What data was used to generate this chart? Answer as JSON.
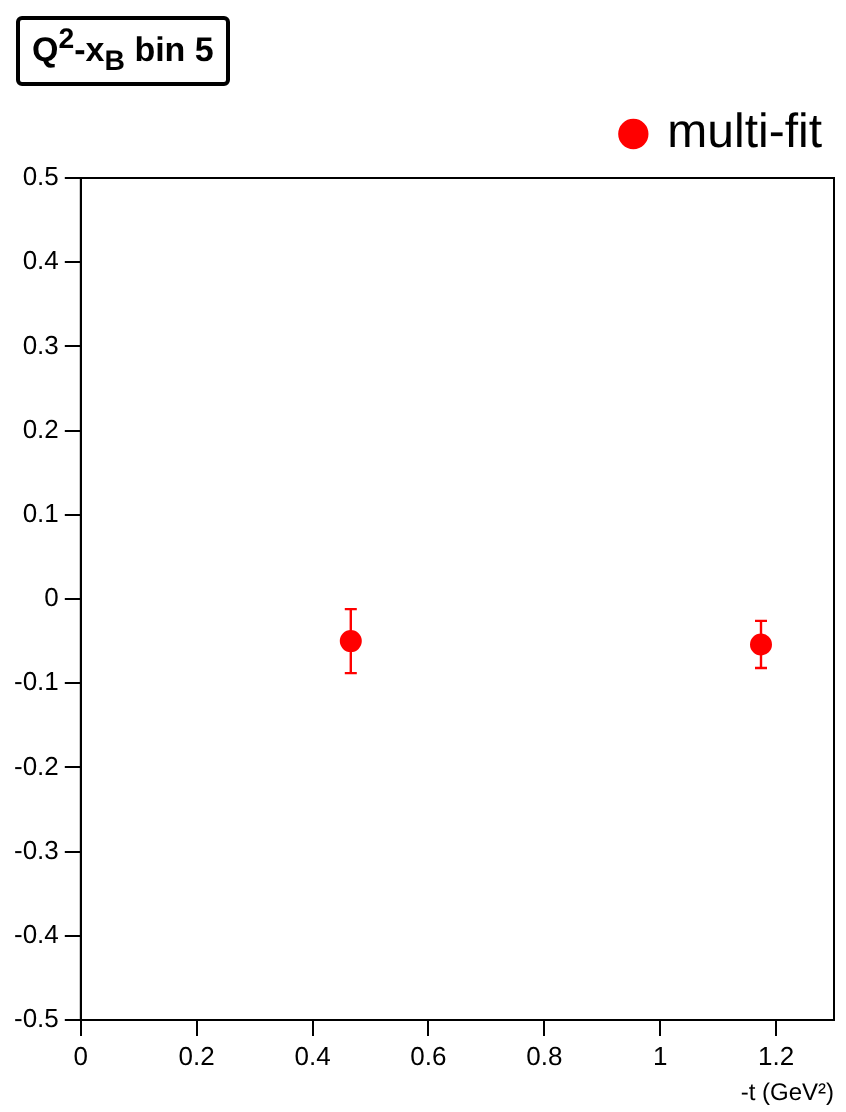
{
  "chart_data": {
    "type": "scatter",
    "title": "Q$^{2}$-x$_{B}$ bin 5",
    "xlabel": "-t (GeV²)",
    "x": [
      0.466,
      1.174
    ],
    "series": [
      {
        "name": "multi-fit",
        "color": "#ff0000",
        "values": [
          -0.05,
          -0.054
        ],
        "errors": [
          0.038,
          0.028
        ]
      }
    ],
    "xlim": [
      0,
      1.3
    ],
    "xticks": [
      0,
      0.2,
      0.4,
      0.6,
      0.8,
      1,
      1.2
    ],
    "ylim": [
      -0.5,
      0.5
    ],
    "yticks": [
      -0.5,
      -0.4,
      -0.3,
      -0.2,
      -0.1,
      0,
      0.1,
      0.2,
      0.3,
      0.4,
      0.5
    ],
    "grid": false,
    "legend": "top right",
    "marker": "circle"
  }
}
